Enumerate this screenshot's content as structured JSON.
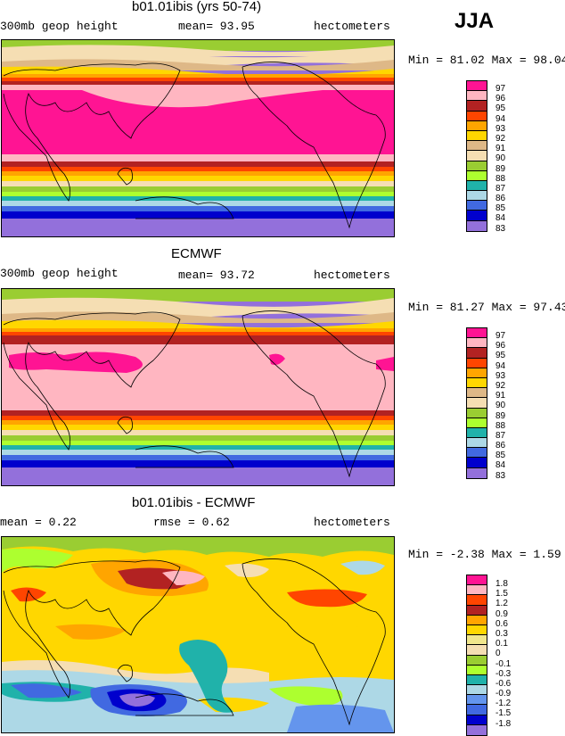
{
  "season": "JJA",
  "panels": [
    {
      "title": "b01.01ibis (yrs 50-74)",
      "left_label": "300mb geop height",
      "mid_label": "mean=  93.95",
      "right_label": "hectometers",
      "minmax": "Min =  81.02 Max =  98.04",
      "legend": [
        "97",
        "96",
        "95",
        "94",
        "93",
        "92",
        "91",
        "90",
        "89",
        "88",
        "87",
        "86",
        "85",
        "84",
        "83"
      ],
      "colors": [
        "#ff1493",
        "#ffb6c1",
        "#b22222",
        "#ff4500",
        "#ffa500",
        "#ffd700",
        "#deb887",
        "#f5deb3",
        "#9acd32",
        "#adff2f",
        "#20b2aa",
        "#add8e6",
        "#4169e1",
        "#0000cd",
        "#9370db"
      ]
    },
    {
      "title": "ECMWF",
      "left_label": "300mb geop height",
      "mid_label": "mean=  93.72",
      "right_label": "hectometers",
      "minmax": "Min =  81.27 Max =  97.43",
      "legend": [
        "97",
        "96",
        "95",
        "94",
        "93",
        "92",
        "91",
        "90",
        "89",
        "88",
        "87",
        "86",
        "85",
        "84",
        "83"
      ],
      "colors": [
        "#ff1493",
        "#ffb6c1",
        "#b22222",
        "#ff4500",
        "#ffa500",
        "#ffd700",
        "#deb887",
        "#f5deb3",
        "#9acd32",
        "#adff2f",
        "#20b2aa",
        "#add8e6",
        "#4169e1",
        "#0000cd",
        "#9370db"
      ]
    },
    {
      "title": "b01.01ibis - ECMWF",
      "left_label": "mean =   0.22",
      "mid_label": "rmse =   0.62",
      "right_label": "hectometers",
      "minmax": "Min =  -2.38 Max =   1.59",
      "legend": [
        "1.8",
        "1.5",
        "1.2",
        "0.9",
        "0.6",
        "0.3",
        "0.1",
        "0",
        "-0.1",
        "-0.3",
        "-0.6",
        "-0.9",
        "-1.2",
        "-1.5",
        "-1.8"
      ],
      "colors": [
        "#ff1493",
        "#ffb6c1",
        "#ff4500",
        "#b22222",
        "#ffa500",
        "#ffd700",
        "#f0e68c",
        "#f5deb3",
        "#9acd32",
        "#adff2f",
        "#20b2aa",
        "#add8e6",
        "#6495ed",
        "#4169e1",
        "#0000cd",
        "#9370db"
      ]
    }
  ]
}
